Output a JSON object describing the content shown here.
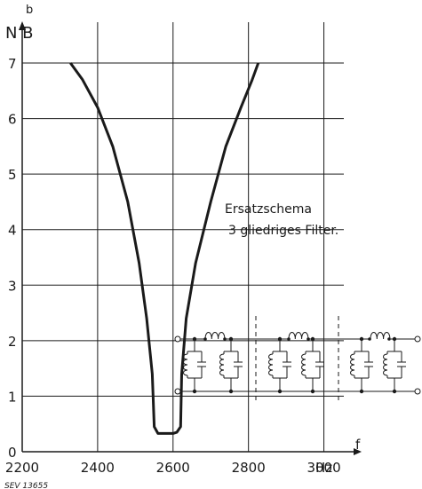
{
  "chart_data": {
    "type": "line",
    "title": "",
    "xlabel": "f",
    "x_unit": "Hz",
    "ylabel_top": "b",
    "ylabel": "N B",
    "xlim": [
      2200,
      3100
    ],
    "ylim": [
      0,
      7
    ],
    "x_ticks": [
      2200,
      2400,
      2600,
      2800,
      3000
    ],
    "y_ticks": [
      0,
      1,
      2,
      3,
      4,
      5,
      6,
      7
    ],
    "grid": true,
    "series": [
      {
        "x": [
          2328,
          2360,
          2400,
          2440,
          2480,
          2510,
          2530,
          2545,
          2550,
          2560,
          2570,
          2580,
          2590,
          2600,
          2610,
          2620,
          2623,
          2635,
          2660,
          2700,
          2740,
          2780,
          2810,
          2826
        ],
        "y": [
          7.0,
          6.7,
          6.2,
          5.5,
          4.5,
          3.4,
          2.4,
          1.4,
          0.45,
          0.33,
          0.33,
          0.33,
          0.33,
          0.33,
          0.35,
          0.45,
          1.4,
          2.4,
          3.4,
          4.5,
          5.5,
          6.2,
          6.7,
          7.0
        ]
      }
    ],
    "annotations": [
      "Ersatzschema",
      "3 gliedriges Filter."
    ]
  },
  "reference_code": "SEV 13655",
  "circuit_icon": "ladder-filter-schematic"
}
